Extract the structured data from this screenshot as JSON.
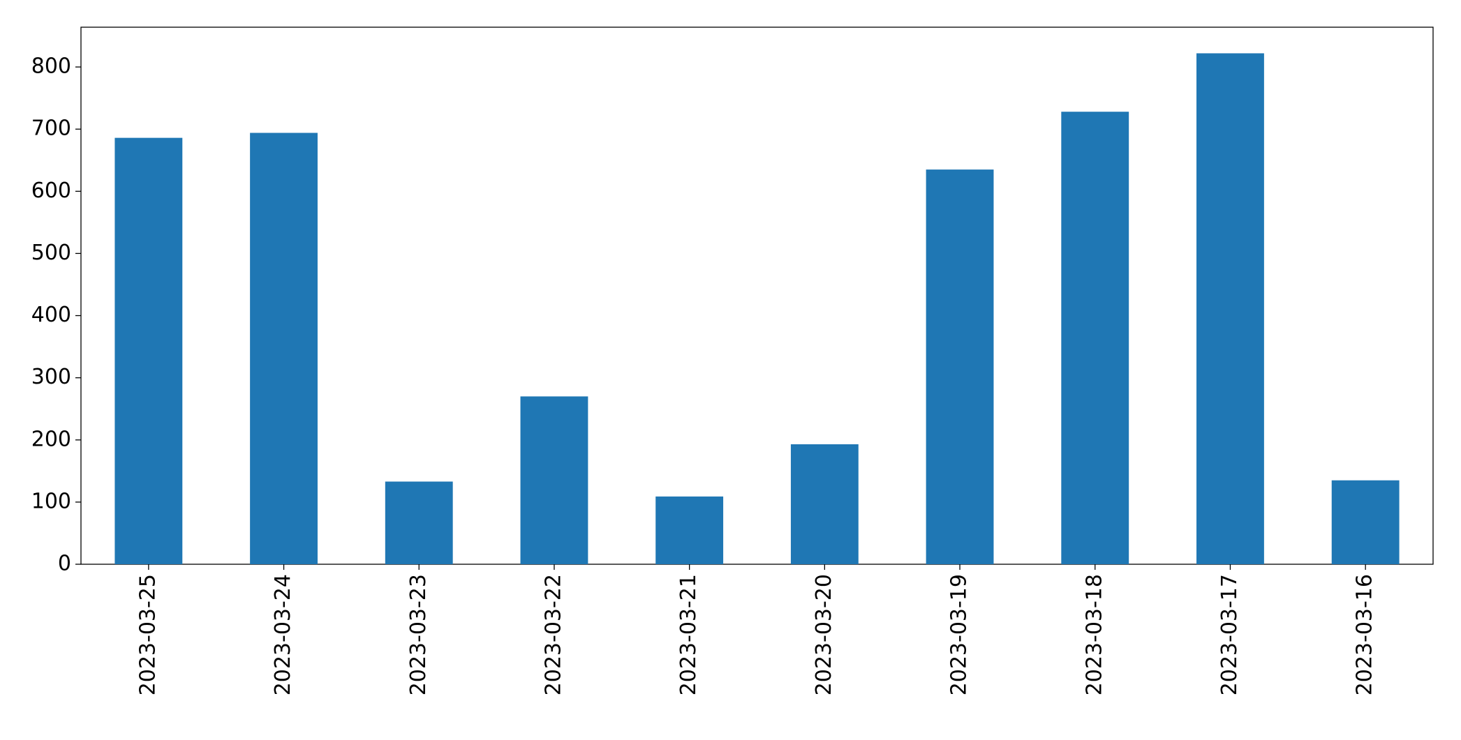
{
  "chart_data": {
    "type": "bar",
    "categories": [
      "2023-03-25",
      "2023-03-24",
      "2023-03-23",
      "2023-03-22",
      "2023-03-21",
      "2023-03-20",
      "2023-03-19",
      "2023-03-18",
      "2023-03-17",
      "2023-03-16"
    ],
    "values": [
      686,
      694,
      133,
      270,
      109,
      193,
      635,
      728,
      822,
      135
    ],
    "color": "#1f77b4",
    "ylim": [
      0,
      864
    ],
    "yticks": [
      0,
      100,
      200,
      300,
      400,
      500,
      600,
      700,
      800
    ],
    "grid": false
  }
}
